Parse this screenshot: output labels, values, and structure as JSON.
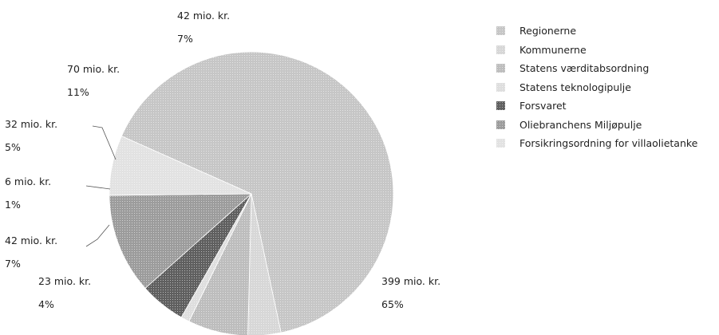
{
  "chart_data": {
    "type": "pie",
    "title": "",
    "unit": "mio. kr.",
    "slices": [
      {
        "name": "Regionerne",
        "value": 399,
        "value_label": "399 mio. kr.",
        "percent_label": "65%",
        "color": "#c6c6c6"
      },
      {
        "name": "Kommunerne",
        "value": 23,
        "value_label": "23 mio. kr.",
        "percent_label": "4%",
        "color": "#d7d7d7"
      },
      {
        "name": "Statens værditabsordning",
        "value": 42,
        "value_label": "42 mio. kr.",
        "percent_label": "7%",
        "color": "#bdbdbd"
      },
      {
        "name": "Statens teknologipulje",
        "value": 6,
        "value_label": "6 mio. kr.",
        "percent_label": "1%",
        "color": "#dedede"
      },
      {
        "name": "Forsvaret",
        "value": 32,
        "value_label": "32 mio. kr.",
        "percent_label": "5%",
        "color": "#5f5f5f"
      },
      {
        "name": "Oliebranchens Miljøpulje",
        "value": 70,
        "value_label": "70 mio. kr.",
        "percent_label": "11%",
        "color": "#9c9c9c"
      },
      {
        "name": "Forsikringsordning for villaolietanke",
        "value": 42,
        "value_label": "42 mio. kr.",
        "percent_label": "7%",
        "color": "#e2e2e2"
      }
    ],
    "legend_position": "right"
  }
}
